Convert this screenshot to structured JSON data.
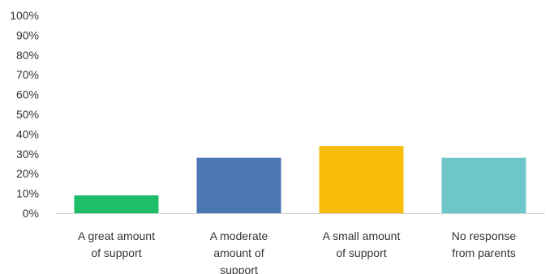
{
  "chart_data": {
    "type": "bar",
    "title": "",
    "xlabel": "",
    "ylabel": "",
    "categories": [
      [
        "A great amount",
        "of support"
      ],
      [
        "A moderate",
        "amount of",
        "support"
      ],
      [
        "A small amount",
        "of support"
      ],
      [
        "No response",
        "from parents"
      ]
    ],
    "values": [
      9,
      28,
      34,
      28
    ],
    "bar_colors": [
      "#1dbd6a",
      "#4a77b4",
      "#f7bd0a",
      "#6ec6c9"
    ],
    "ylim": [
      0,
      100
    ],
    "yticks": [
      "0%",
      "10%",
      "20%",
      "30%",
      "40%",
      "50%",
      "60%",
      "70%",
      "80%",
      "90%",
      "100%"
    ],
    "grid": false,
    "legend": "none"
  }
}
